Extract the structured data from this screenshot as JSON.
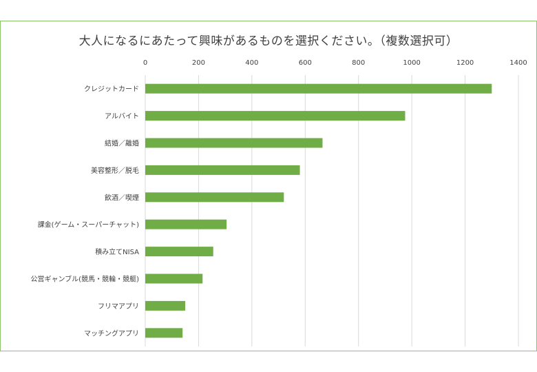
{
  "chart_data": {
    "type": "bar",
    "orientation": "horizontal",
    "title": "大人になるにあたって興味があるものを選択ください。（複数選択可）",
    "categories": [
      "クレジットカード",
      "アルバイト",
      "結婚／離婚",
      "美容整形／脱毛",
      "飲酒／喫煙",
      "課金(ゲーム・スーパーチャット)",
      "積み立てNISA",
      "公営ギャンブル(競馬・競輪・競艇)",
      "フリマアプリ",
      "マッチングアプリ"
    ],
    "values": [
      1300,
      975,
      665,
      580,
      520,
      305,
      255,
      215,
      150,
      140
    ],
    "xlim": [
      0,
      1400
    ],
    "xticks": [
      0,
      200,
      400,
      600,
      800,
      1000,
      1200,
      1400
    ],
    "tick_position": "top",
    "grid": true,
    "bar_color": "#70ad47",
    "grid_color": "#d9d9d9",
    "border_color": "#8cc46a"
  }
}
